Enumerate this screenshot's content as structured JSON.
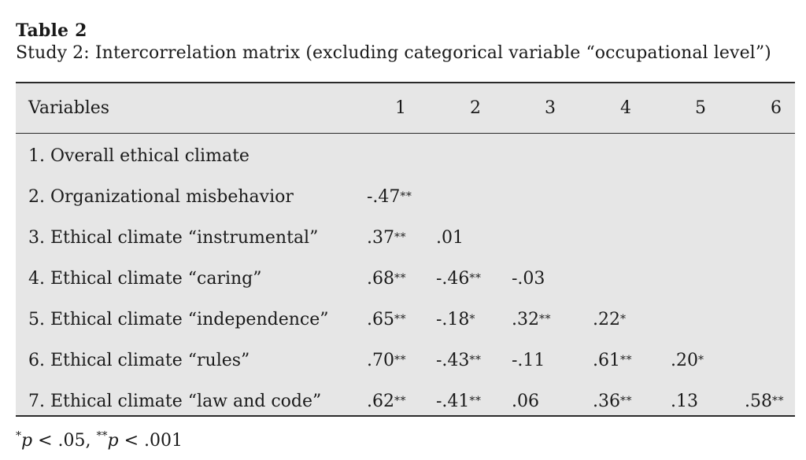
{
  "table": {
    "title": "Table 2",
    "subtitle": "Study 2: Intercorrelation matrix (excluding categorical variable “occupational level”)",
    "header": {
      "variables": "Variables",
      "cols": [
        "1",
        "2",
        "3",
        "4",
        "5",
        "6"
      ]
    },
    "rows": [
      {
        "label": "1. Overall ethical climate",
        "cells": []
      },
      {
        "label": "2. Organizational misbehavior",
        "cells": [
          {
            "v": "-.47",
            "s": "**"
          }
        ]
      },
      {
        "label": "3. Ethical climate “instrumental”",
        "cells": [
          {
            "v": ".37",
            "s": "**"
          },
          {
            "v": ".01",
            "s": ""
          }
        ]
      },
      {
        "label": "4. Ethical climate “caring”",
        "cells": [
          {
            "v": ".68",
            "s": "**"
          },
          {
            "v": "-.46",
            "s": "**"
          },
          {
            "v": "-.03",
            "s": ""
          }
        ]
      },
      {
        "label": "5. Ethical climate “independence”",
        "cells": [
          {
            "v": ".65",
            "s": "**"
          },
          {
            "v": "-.18",
            "s": "*"
          },
          {
            "v": ".32",
            "s": "**"
          },
          {
            "v": ".22",
            "s": "*"
          }
        ]
      },
      {
        "label": "6. Ethical climate “rules”",
        "cells": [
          {
            "v": ".70",
            "s": "**"
          },
          {
            "v": "-.43",
            "s": "**"
          },
          {
            "v": "-.11",
            "s": ""
          },
          {
            "v": ".61",
            "s": "**"
          },
          {
            "v": ".20",
            "s": "*"
          }
        ]
      },
      {
        "label": "7. Ethical climate “law and code”",
        "cells": [
          {
            "v": ".62",
            "s": "**"
          },
          {
            "v": "-.41",
            "s": "**"
          },
          {
            "v": ".06",
            "s": ""
          },
          {
            "v": ".36",
            "s": "**"
          },
          {
            "v": ".13",
            "s": ""
          },
          {
            "v": ".58",
            "s": "**"
          }
        ]
      }
    ]
  },
  "footnote": {
    "sig1_mark": "*",
    "sig1_p": "p",
    "sig1_rest": " < .05, ",
    "sig2_mark": "**",
    "sig2_p": "p",
    "sig2_rest": " < .001"
  }
}
